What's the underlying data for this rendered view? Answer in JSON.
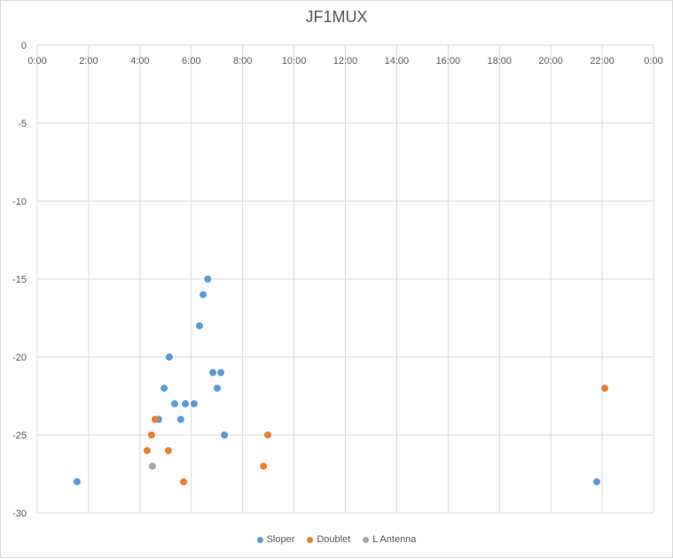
{
  "chart_data": {
    "type": "scatter",
    "title": "JF1MUX",
    "xlabel": "",
    "ylabel": "",
    "xlim": [
      0,
      24
    ],
    "ylim": [
      -30,
      0
    ],
    "x_ticks": [
      0,
      2,
      4,
      6,
      8,
      10,
      12,
      14,
      16,
      18,
      20,
      22,
      24
    ],
    "x_tick_labels": [
      "0:00",
      "2:00",
      "4:00",
      "6:00",
      "8:00",
      "10:00",
      "12:00",
      "14:00",
      "16:00",
      "18:00",
      "20:00",
      "22:00",
      "0:00"
    ],
    "y_ticks": [
      0,
      -5,
      -10,
      -15,
      -20,
      -25,
      -30
    ],
    "y_tick_labels": [
      "0",
      "-5",
      "-10",
      "-15",
      "-20",
      "-25",
      "-30"
    ],
    "grid": true,
    "legend_position": "bottom",
    "series": [
      {
        "name": "Sloper",
        "color": "#5b9bd5",
        "points": [
          [
            1.55,
            -28
          ],
          [
            5.14,
            -20
          ],
          [
            4.94,
            -22
          ],
          [
            4.73,
            -24
          ],
          [
            5.35,
            -23
          ],
          [
            5.77,
            -23
          ],
          [
            5.59,
            -24
          ],
          [
            6.11,
            -23
          ],
          [
            6.32,
            -18
          ],
          [
            6.46,
            -16
          ],
          [
            6.64,
            -15
          ],
          [
            6.84,
            -21
          ],
          [
            7.15,
            -21
          ],
          [
            7.01,
            -22
          ],
          [
            7.29,
            -25
          ],
          [
            21.79,
            -28
          ]
        ]
      },
      {
        "name": "Doublet",
        "color": "#ed7d31",
        "points": [
          [
            4.28,
            -26
          ],
          [
            4.45,
            -25
          ],
          [
            4.59,
            -24
          ],
          [
            5.11,
            -26
          ],
          [
            5.7,
            -28
          ],
          [
            8.81,
            -27
          ],
          [
            8.98,
            -25
          ],
          [
            22.1,
            -22
          ]
        ]
      },
      {
        "name": "L Antenna",
        "color": "#a5a5a5",
        "points": [
          [
            4.49,
            -27
          ]
        ]
      }
    ]
  }
}
